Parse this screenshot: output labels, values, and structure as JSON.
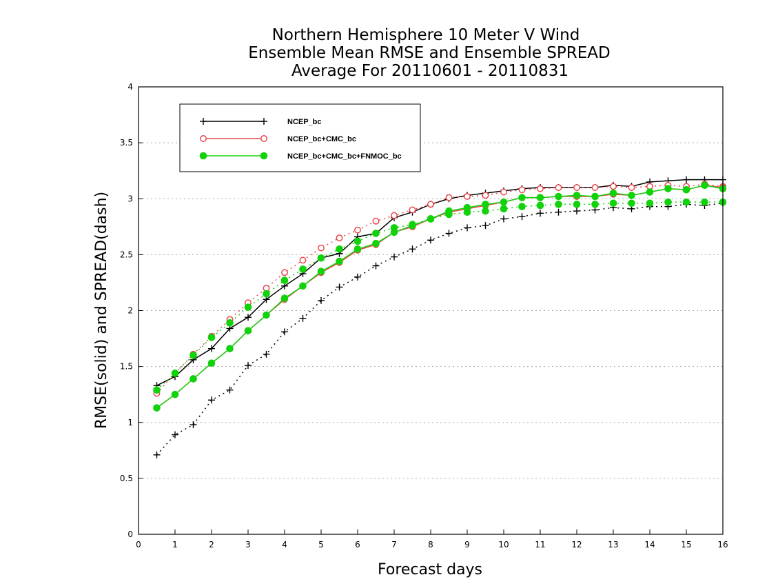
{
  "chart_data": {
    "type": "line",
    "title": [
      "Northern Hemisphere 10 Meter V Wind",
      "Ensemble Mean RMSE and Ensemble SPREAD",
      "Average For 20110601 - 20110831"
    ],
    "xlabel": "Forecast days",
    "ylabel": "RMSE(solid) and SPREAD(dash)",
    "xlim": [
      0,
      16
    ],
    "ylim": [
      0,
      4
    ],
    "xticks": [
      "0",
      "1",
      "2",
      "3",
      "4",
      "5",
      "6",
      "7",
      "8",
      "9",
      "10",
      "11",
      "12",
      "13",
      "14",
      "15",
      "16"
    ],
    "yticks": [
      "0",
      "0.5",
      "1",
      "1.5",
      "2",
      "2.5",
      "3",
      "3.5",
      "4"
    ],
    "grid": "horizontal dotted",
    "legend_position": "top-left",
    "x": [
      0.5,
      1,
      1.5,
      2,
      2.5,
      3,
      3.5,
      4,
      4.5,
      5,
      5.5,
      6,
      6.5,
      7,
      7.5,
      8,
      8.5,
      9,
      9.5,
      10,
      10.5,
      11,
      11.5,
      12,
      12.5,
      13,
      13.5,
      14,
      14.5,
      15,
      15.5,
      16
    ],
    "series": [
      {
        "name": "NCEP_bc",
        "color": "#000000",
        "marker": "plus",
        "rmse": [
          1.33,
          1.41,
          1.56,
          1.66,
          1.84,
          1.94,
          2.1,
          2.22,
          2.33,
          2.47,
          2.51,
          2.66,
          2.69,
          2.83,
          2.88,
          2.95,
          3.0,
          3.03,
          3.05,
          3.07,
          3.09,
          3.1,
          3.1,
          3.1,
          3.1,
          3.12,
          3.11,
          3.15,
          3.16,
          3.17,
          3.17,
          3.17
        ],
        "spread": [
          0.71,
          0.89,
          0.98,
          1.2,
          1.29,
          1.51,
          1.61,
          1.81,
          1.93,
          2.09,
          2.21,
          2.3,
          2.4,
          2.48,
          2.55,
          2.63,
          2.69,
          2.74,
          2.76,
          2.82,
          2.84,
          2.87,
          2.88,
          2.89,
          2.9,
          2.92,
          2.91,
          2.93,
          2.93,
          2.95,
          2.94,
          2.96
        ]
      },
      {
        "name": "NCEP_bc+CMC_bc",
        "color": "#e8474b",
        "marker": "open-circle",
        "rmse": [
          1.13,
          1.25,
          1.39,
          1.53,
          1.66,
          1.82,
          1.96,
          2.1,
          2.22,
          2.34,
          2.43,
          2.54,
          2.59,
          2.7,
          2.75,
          2.82,
          2.88,
          2.91,
          2.94,
          2.97,
          3.01,
          3.01,
          3.02,
          3.02,
          3.02,
          3.04,
          3.03,
          3.06,
          3.09,
          3.08,
          3.12,
          3.1
        ],
        "spread": [
          1.26,
          1.44,
          1.61,
          1.77,
          1.92,
          2.07,
          2.2,
          2.34,
          2.45,
          2.56,
          2.65,
          2.72,
          2.8,
          2.85,
          2.9,
          2.95,
          3.01,
          3.02,
          3.03,
          3.06,
          3.08,
          3.09,
          3.1,
          3.1,
          3.1,
          3.11,
          3.1,
          3.11,
          3.12,
          3.11,
          3.13,
          3.11
        ]
      },
      {
        "name": "NCEP_bc+CMC_bc+FNMOC_bc",
        "color": "#11d20b",
        "marker": "filled-circle",
        "rmse": [
          1.13,
          1.25,
          1.39,
          1.53,
          1.66,
          1.82,
          1.96,
          2.11,
          2.22,
          2.35,
          2.44,
          2.55,
          2.6,
          2.7,
          2.76,
          2.82,
          2.89,
          2.92,
          2.95,
          2.97,
          3.01,
          3.01,
          3.02,
          3.03,
          3.02,
          3.05,
          3.03,
          3.06,
          3.09,
          3.08,
          3.12,
          3.09
        ],
        "spread": [
          1.29,
          1.44,
          1.6,
          1.76,
          1.89,
          2.03,
          2.15,
          2.27,
          2.37,
          2.47,
          2.55,
          2.62,
          2.69,
          2.74,
          2.77,
          2.82,
          2.86,
          2.88,
          2.89,
          2.91,
          2.93,
          2.94,
          2.95,
          2.95,
          2.95,
          2.96,
          2.96,
          2.96,
          2.97,
          2.97,
          2.97,
          2.97
        ]
      }
    ]
  }
}
